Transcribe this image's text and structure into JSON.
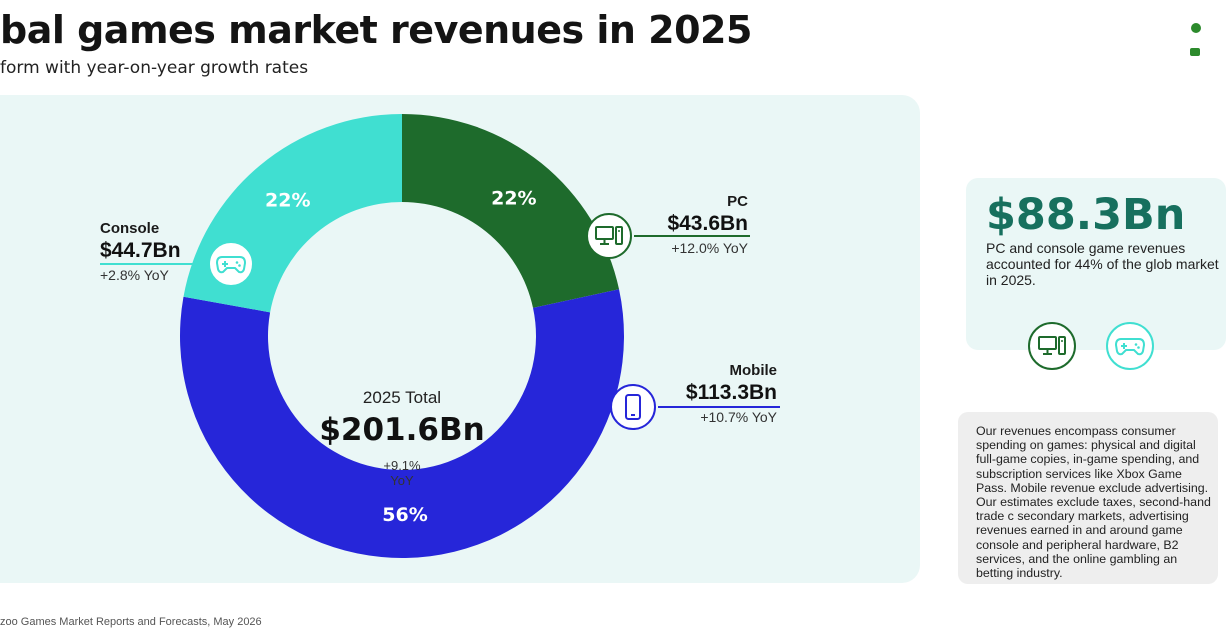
{
  "header": {
    "title": "bal games market revenues in 2025",
    "subtitle": "form with year-on-year growth rates"
  },
  "chart_data": {
    "type": "pie",
    "categories": [
      "PC",
      "Mobile",
      "Console"
    ],
    "values": [
      43.6,
      113.3,
      44.7
    ],
    "value_labels": [
      "$43.6Bn",
      "$113.3Bn",
      "$44.7Bn"
    ],
    "percent_labels": [
      "22%",
      "56%",
      "22%"
    ],
    "yoy_labels": [
      "+12.0% YoY",
      "+10.7% YoY",
      "+2.8% YoY"
    ],
    "colors": [
      "#1e6b2c",
      "#2626d9",
      "#40dfd1"
    ],
    "center": {
      "label": "2025 Total",
      "value": "$201.6Bn",
      "yoy_line1": "+9.1%",
      "yoy_line2": "YoY"
    }
  },
  "stat_card": {
    "value": "$88.3Bn",
    "text": "PC and console game revenues accounted for 44% of the glob market in 2025."
  },
  "note": {
    "text": "Our revenues encompass consumer spending on games: physical and digital full-game copies, in-game spending, and subscription services like Xbox Game Pass. Mobile revenue exclude advertising. Our estimates exclude taxes, second-hand trade c secondary markets, advertising revenues earned in and around game console and peripheral hardware, B2 services, and the online gambling an betting industry."
  },
  "source": "zoo Games Market Reports and Forecasts, May 2026",
  "icons": {
    "pc": "desktop-computer-icon",
    "mobile": "smartphone-icon",
    "console": "gamepad-icon"
  }
}
